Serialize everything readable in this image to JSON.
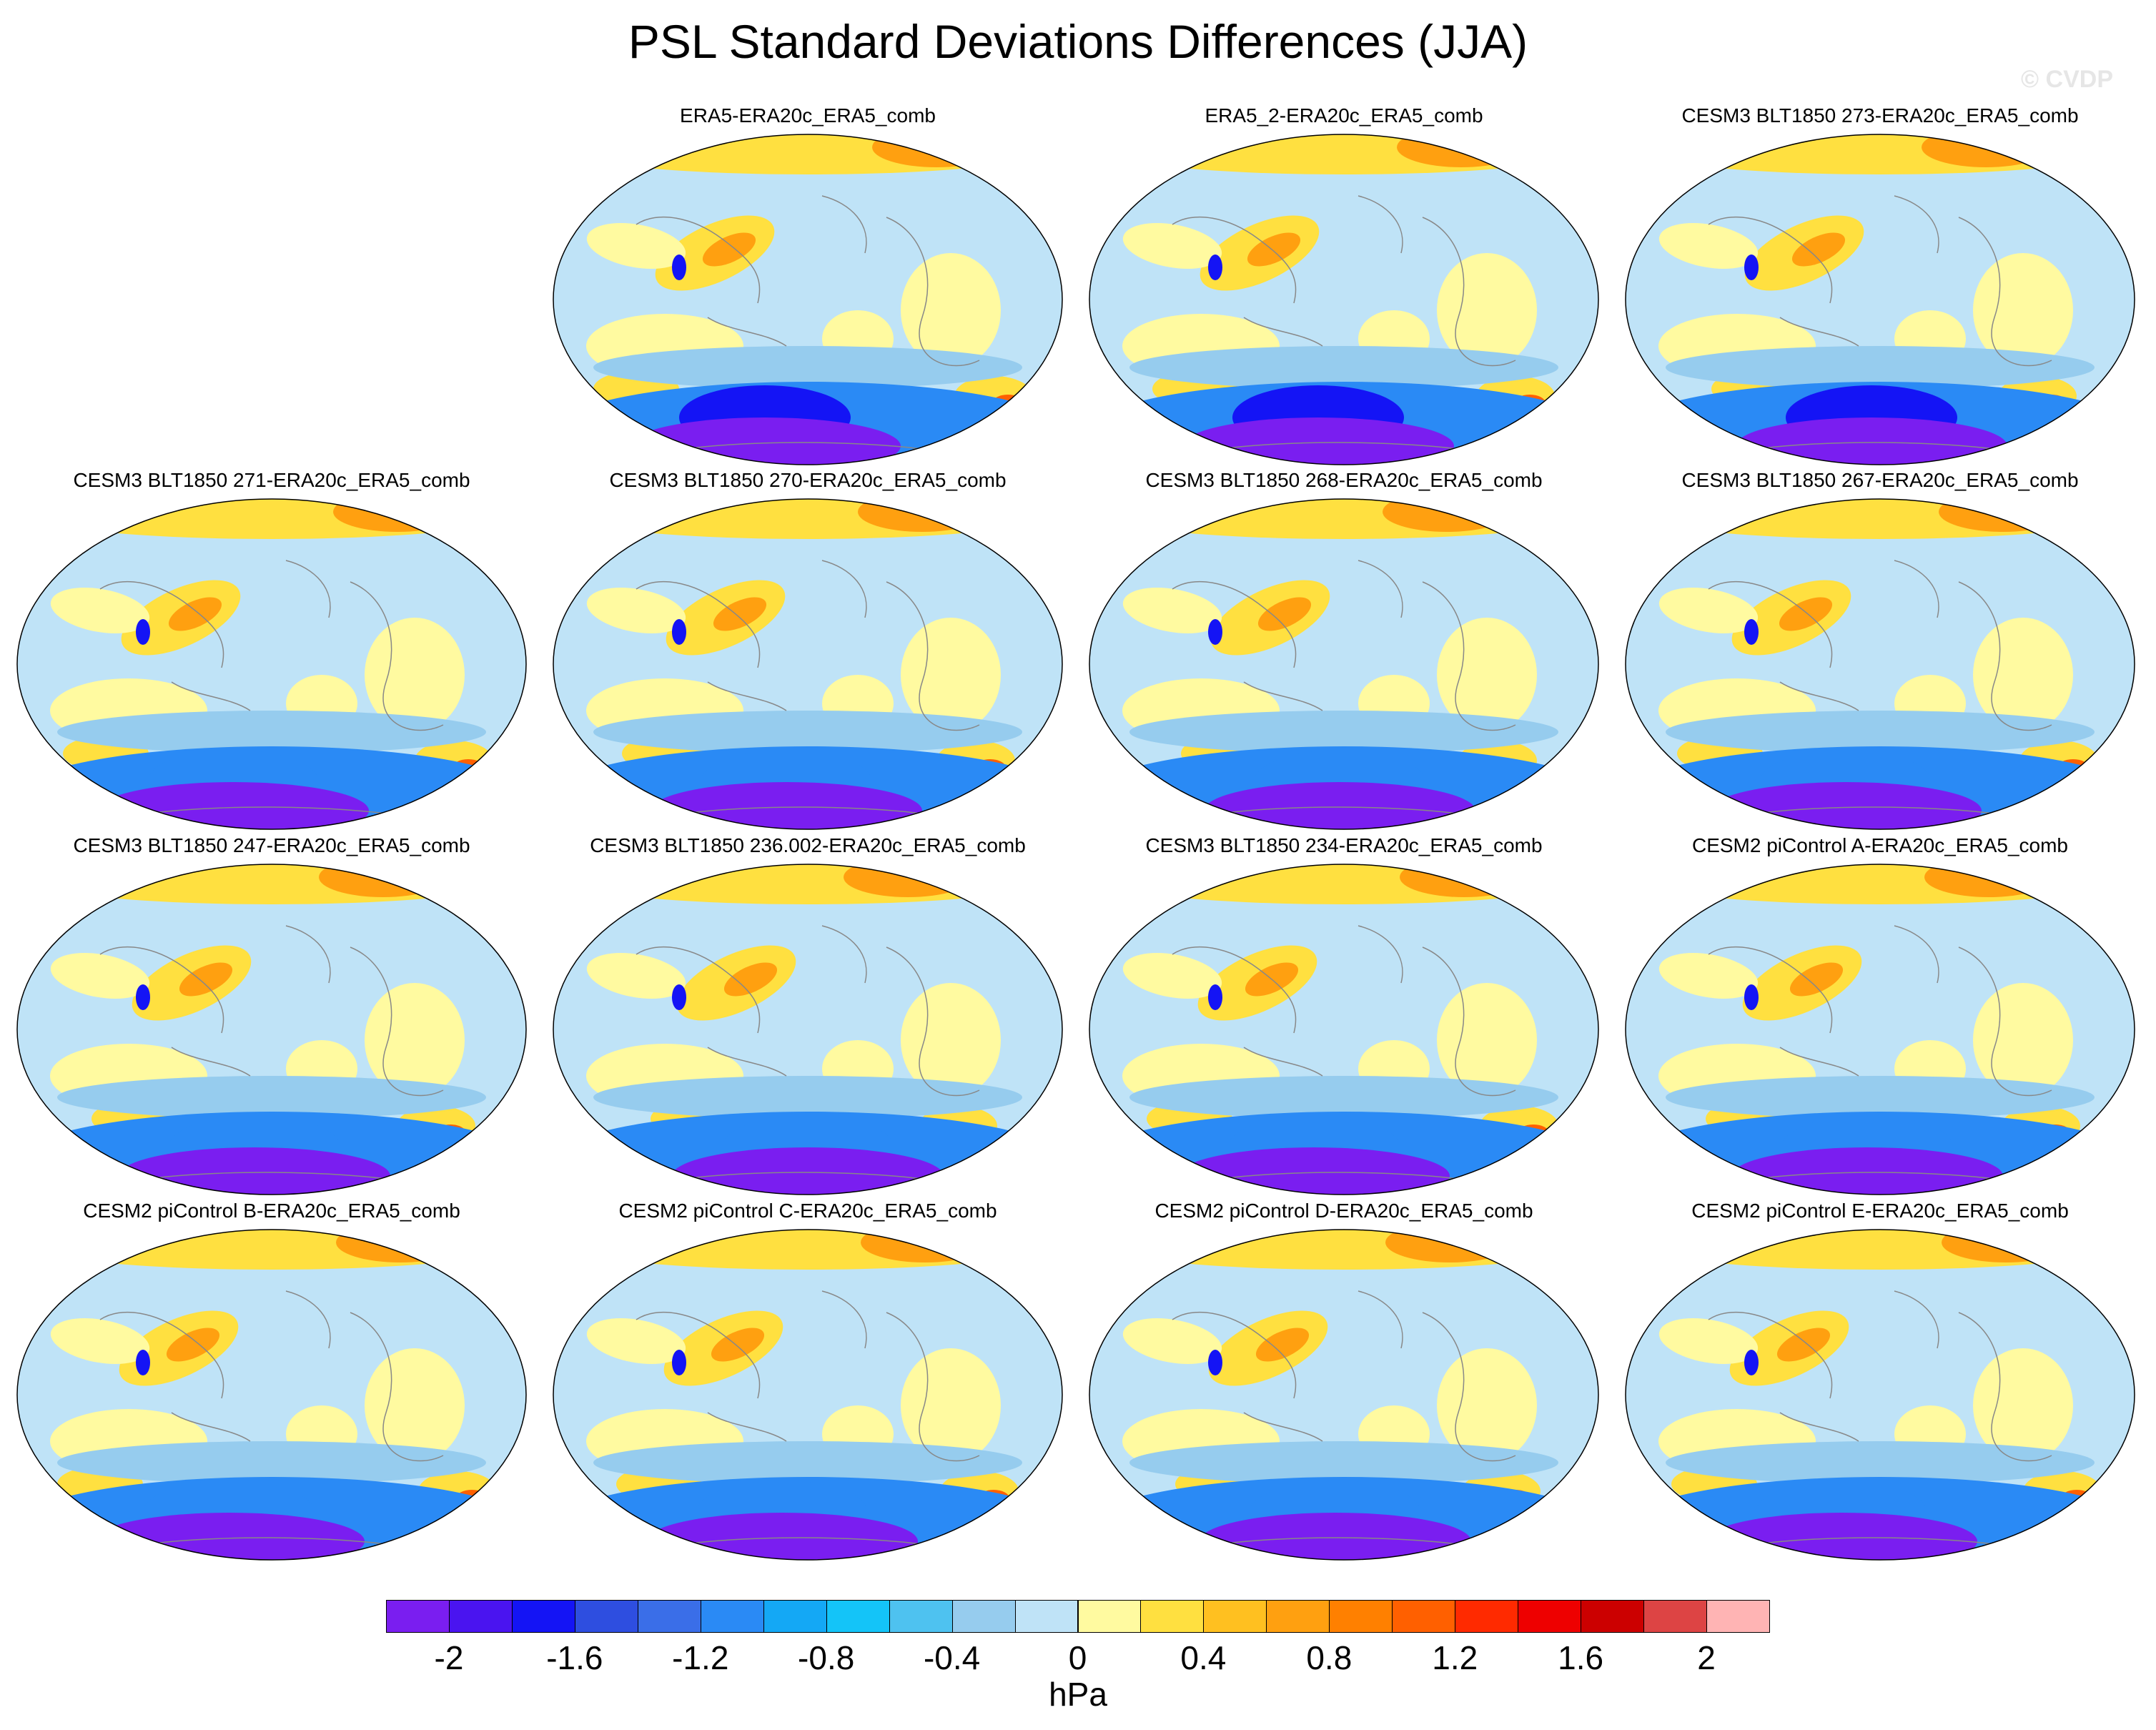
{
  "title": "PSL Standard Deviations Differences (JJA)",
  "watermark": "© CVDP",
  "panels": [
    {
      "title": "ERA5-ERA20c_ERA5_comb"
    },
    {
      "title": "ERA5_2-ERA20c_ERA5_comb"
    },
    {
      "title": "CESM3 BLT1850 273-ERA20c_ERA5_comb"
    },
    {
      "title": "CESM3 BLT1850 271-ERA20c_ERA5_comb"
    },
    {
      "title": "CESM3 BLT1850 270-ERA20c_ERA5_comb"
    },
    {
      "title": "CESM3 BLT1850 268-ERA20c_ERA5_comb"
    },
    {
      "title": "CESM3 BLT1850 267-ERA20c_ERA5_comb"
    },
    {
      "title": "CESM3 BLT1850 247-ERA20c_ERA5_comb"
    },
    {
      "title": "CESM3 BLT1850 236.002-ERA20c_ERA5_comb"
    },
    {
      "title": "CESM3 BLT1850 234-ERA20c_ERA5_comb"
    },
    {
      "title": "CESM2 piControl A-ERA20c_ERA5_comb"
    },
    {
      "title": "CESM2 piControl B-ERA20c_ERA5_comb"
    },
    {
      "title": "CESM2 piControl C-ERA20c_ERA5_comb"
    },
    {
      "title": "CESM2 piControl D-ERA20c_ERA5_comb"
    },
    {
      "title": "CESM2 piControl E-ERA20c_ERA5_comb"
    }
  ],
  "colorbar": {
    "units": "hPa",
    "colors": [
      "#7a1ef0",
      "#4a14f0",
      "#1414f5",
      "#2e4ee0",
      "#3a6ee8",
      "#2a8af5",
      "#14a8f5",
      "#14c4f8",
      "#4ec2f0",
      "#96ccee",
      "#bfe3f7",
      "#fffaa0",
      "#ffe040",
      "#ffc020",
      "#ffa010",
      "#ff8000",
      "#ff6000",
      "#ff2a00",
      "#ee0000",
      "#cc0000",
      "#dd4444",
      "#ffb4b4"
    ],
    "tick_labels": [
      "-2",
      "-1.6",
      "-1.2",
      "-0.8",
      "-0.4",
      "0",
      "0.4",
      "0.8",
      "1.2",
      "1.6",
      "2"
    ]
  },
  "map_colors": {
    "background": "#bfe3f7",
    "weak_positive": "#fffaa0",
    "positive": "#ffe040",
    "strong_positive": "#ffa010",
    "very_strong_positive": "#ff6000",
    "weak_negative": "#96ccee",
    "negative": "#2a8af5",
    "strong_negative": "#1414f5",
    "very_strong_negative": "#7a1ef0",
    "coastline": "#888888"
  }
}
